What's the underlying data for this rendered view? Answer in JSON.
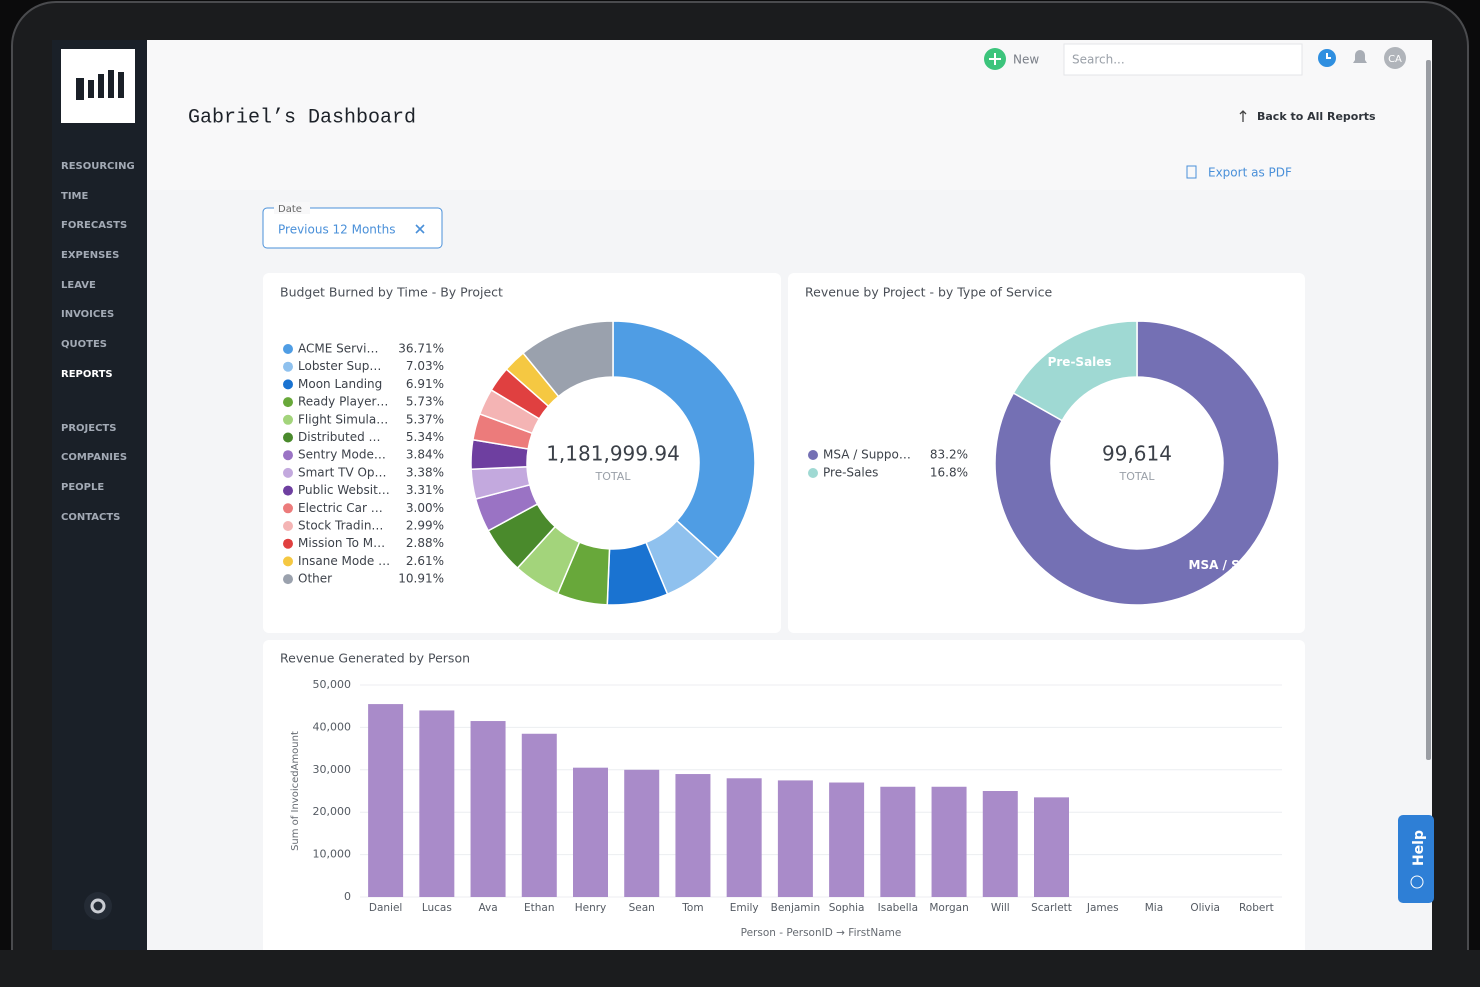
{
  "sidebar": {
    "nav": [
      "RESOURCING",
      "TIME",
      "FORECASTS",
      "EXPENSES",
      "LEAVE",
      "INVOICES",
      "QUOTES",
      "REPORTS"
    ],
    "nav2": [
      "PROJECTS",
      "COMPANIES",
      "PEOPLE",
      "CONTACTS"
    ],
    "active": "REPORTS"
  },
  "topbar": {
    "new": "New",
    "search": "Search...",
    "avatar": "CA"
  },
  "header": {
    "title": "Gabriel’s Dashboard",
    "back": "Back to All Reports",
    "export": "Export as PDF"
  },
  "filter": {
    "label": "Date",
    "value": "Previous 12 Months"
  },
  "help": "Help",
  "chart_data": [
    {
      "type": "donut",
      "title": "Budget Burned by Time - By Project",
      "categories": [
        "ACME Servi…",
        "Lobster Sup…",
        "Moon Landing",
        "Ready Player…",
        "Flight Simula…",
        "Distributed …",
        "Sentry Mode…",
        "Smart TV Op…",
        "Public Websit…",
        "Electric Car …",
        "Stock Tradin…",
        "Mission To M…",
        "Insane Mode …",
        "Other"
      ],
      "values": [
        36.71,
        7.03,
        6.91,
        5.73,
        5.37,
        5.34,
        3.84,
        3.38,
        3.31,
        3.0,
        2.99,
        2.88,
        2.61,
        10.91
      ],
      "value_labels": [
        "36.71%",
        "7.03%",
        "6.91%",
        "5.73%",
        "5.37%",
        "5.34%",
        "3.84%",
        "3.38%",
        "3.31%",
        "3.00%",
        "2.99%",
        "2.88%",
        "2.61%",
        "10.91%"
      ],
      "colors": [
        "#4f9de4",
        "#8fc1ee",
        "#1a73d1",
        "#68a83a",
        "#a3d47b",
        "#4a8a2c",
        "#9a73c4",
        "#c3a9de",
        "#6e3fa0",
        "#ec7b7b",
        "#f4b4b4",
        "#e04040",
        "#f5c842",
        "#9aa1ad"
      ],
      "total": "1,181,999.94",
      "total_label": "TOTAL"
    },
    {
      "type": "donut",
      "title": "Revenue by Project - by Type of Service",
      "categories": [
        "MSA / Suppo…",
        "Pre-Sales"
      ],
      "values": [
        83.2,
        16.8
      ],
      "value_labels": [
        "83.2%",
        "16.8%"
      ],
      "slice_labels": [
        "MSA / Su…",
        "Pre-Sales"
      ],
      "colors": [
        "#7470b4",
        "#9fd9d3"
      ],
      "total": "99,614",
      "total_label": "TOTAL"
    },
    {
      "type": "bar",
      "title": "Revenue Generated by Person",
      "y_label": "Sum of InvoicedAmount",
      "x_label": "Person - PersonID → FirstName",
      "categories": [
        "Daniel",
        "Lucas",
        "Ava",
        "Ethan",
        "Henry",
        "Sean",
        "Tom",
        "Emily",
        "Benjamin",
        "Sophia",
        "Isabella",
        "Morgan",
        "Will",
        "Scarlett",
        "James",
        "Mia",
        "Olivia",
        "Robert"
      ],
      "values": [
        45500,
        44000,
        41500,
        38500,
        30500,
        30000,
        29000,
        28000,
        27500,
        27000,
        26000,
        26000,
        25000,
        23500,
        null,
        null,
        null,
        null
      ],
      "color": "#a98bc9",
      "ylim": [
        0,
        50000
      ],
      "yticks": [
        0,
        {
          "value": 10000,
          "label": "10,000"
        },
        {
          "value": 20000,
          "label": "20,000"
        },
        {
          "value": 30000,
          "label": "30,000"
        },
        {
          "value": 40000,
          "label": "40,000"
        },
        {
          "value": 50000,
          "label": "50,000"
        }
      ],
      "grid": true
    }
  ]
}
